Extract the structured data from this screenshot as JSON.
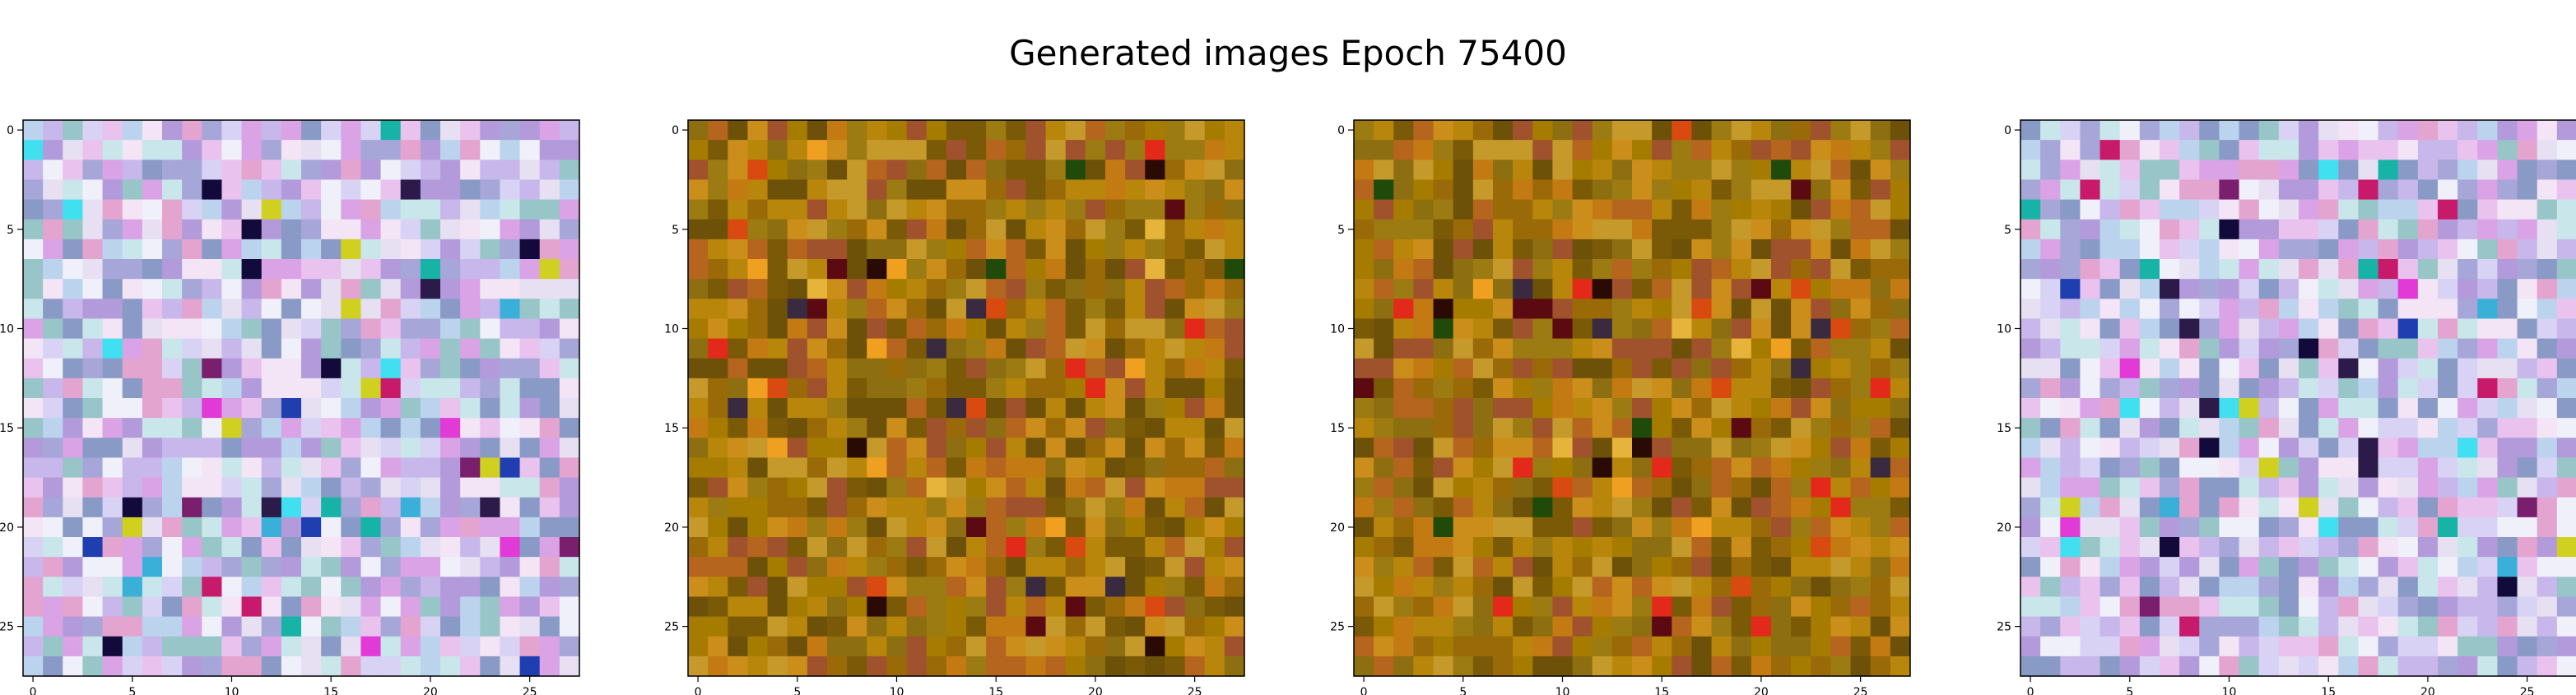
{
  "figure": {
    "title": "Generated images Epoch 75400"
  },
  "chart_data": [
    {
      "type": "heatmap",
      "title": "",
      "xlabel": "",
      "ylabel": "",
      "grid": false,
      "xlim": [
        -0.5,
        27.5
      ],
      "ylim": [
        27.5,
        -0.5
      ],
      "xticks": [
        "0",
        "5",
        "10",
        "15",
        "20",
        "25"
      ],
      "yticks": [
        "0",
        "5",
        "10",
        "15",
        "20",
        "25"
      ],
      "palette": "pastel",
      "seed": 11,
      "approximate_pixels": true
    },
    {
      "type": "heatmap",
      "title": "",
      "xlabel": "",
      "ylabel": "",
      "grid": false,
      "xlim": [
        -0.5,
        27.5
      ],
      "ylim": [
        27.5,
        -0.5
      ],
      "xticks": [
        "0",
        "5",
        "10",
        "15",
        "20",
        "25"
      ],
      "yticks": [
        "0",
        "5",
        "10",
        "15",
        "20",
        "25"
      ],
      "palette": "ochre",
      "seed": 23,
      "approximate_pixels": true
    },
    {
      "type": "heatmap",
      "title": "",
      "xlabel": "",
      "ylabel": "",
      "grid": false,
      "xlim": [
        -0.5,
        27.5
      ],
      "ylim": [
        27.5,
        -0.5
      ],
      "xticks": [
        "0",
        "5",
        "10",
        "15",
        "20",
        "25"
      ],
      "yticks": [
        "0",
        "5",
        "10",
        "15",
        "20",
        "25"
      ],
      "palette": "ochre",
      "seed": 37,
      "approximate_pixels": true
    },
    {
      "type": "heatmap",
      "title": "",
      "xlabel": "",
      "ylabel": "",
      "grid": false,
      "xlim": [
        -0.5,
        27.5
      ],
      "ylim": [
        27.5,
        -0.5
      ],
      "xticks": [
        "0",
        "5",
        "10",
        "15",
        "20",
        "25"
      ],
      "yticks": [
        "0",
        "5",
        "10",
        "15",
        "20",
        "25"
      ],
      "palette": "pastel",
      "seed": 51,
      "approximate_pixels": true
    }
  ],
  "palettes": {
    "pastel": [
      "#d9a3e6",
      "#c7b7ea",
      "#e9c2ee",
      "#bcd3ee",
      "#f3e4f6",
      "#a6a6d8",
      "#e3a4d0",
      "#c9e6ea",
      "#b39adb",
      "#f0f0fb",
      "#d8d3f4",
      "#97c5c8",
      "#8a9ac6",
      "#e6e0f2"
    ],
    "pastel_accents": [
      "#2b1a4a",
      "#120a3a",
      "#16b3a6",
      "#e23ad6",
      "#1f3fb0",
      "#d0d020",
      "#41e0f0",
      "#7a1f6e",
      "#c81a6a",
      "#3ab0d8"
    ],
    "ochre": [
      "#b8860b",
      "#9a6a08",
      "#c47a12",
      "#7a5a06",
      "#8d6e10",
      "#a67c00",
      "#b5651d",
      "#9b7b12",
      "#cc8e1a",
      "#6e5108",
      "#a0522d",
      "#c59a2a"
    ],
    "ochre_accents": [
      "#2a0a04",
      "#5a0a10",
      "#1f4a0a",
      "#e32a1a",
      "#f0a020",
      "#3a2a40",
      "#d84a10",
      "#e6b43a"
    ]
  }
}
